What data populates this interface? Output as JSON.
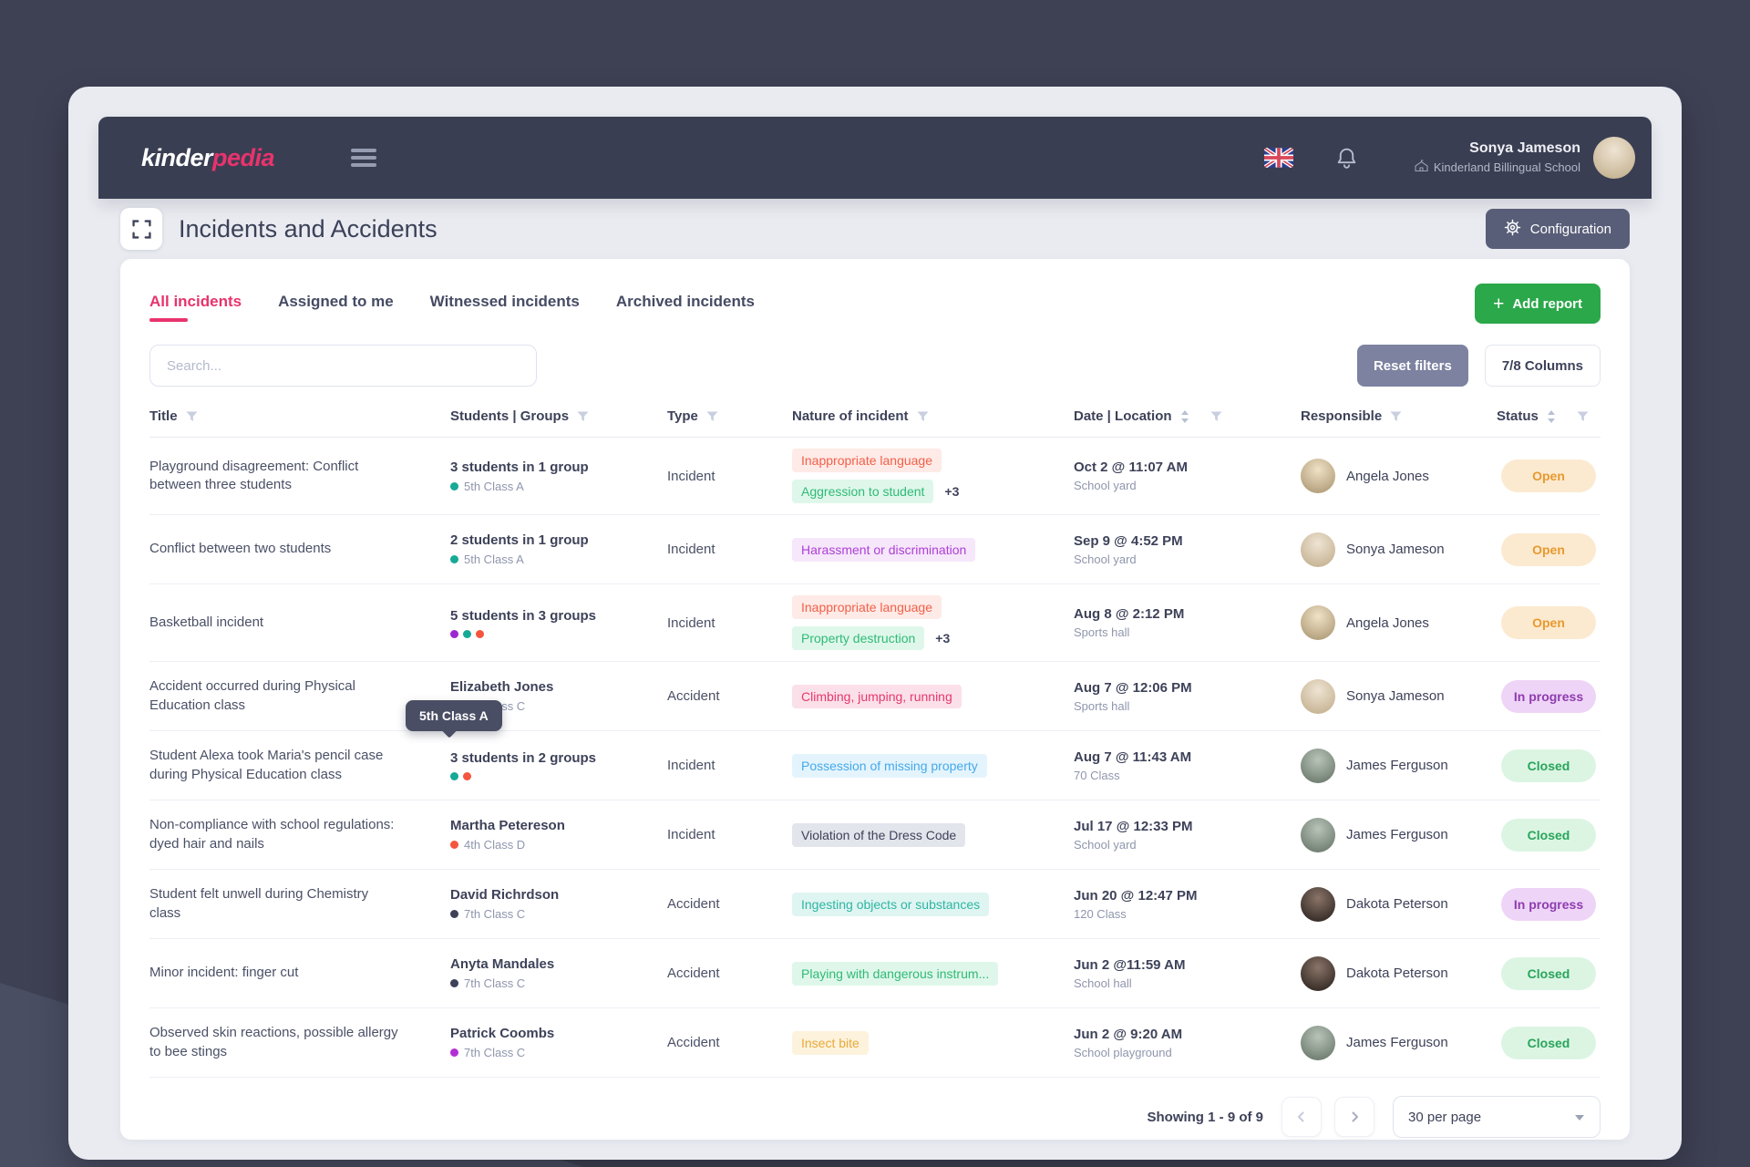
{
  "app": {
    "logo": {
      "bold": "kinder",
      "accent": "pedia"
    },
    "user": {
      "name": "Sonya Jameson",
      "school": "Kinderland Billingual School"
    }
  },
  "page": {
    "title": "Incidents and Accidents",
    "configuration_label": "Configuration"
  },
  "tabs": [
    {
      "label": "All incidents",
      "active": true
    },
    {
      "label": "Assigned to me",
      "active": false
    },
    {
      "label": "Witnessed incidents",
      "active": false
    },
    {
      "label": "Archived incidents",
      "active": false
    }
  ],
  "actions": {
    "add_report_label": "Add report",
    "reset_filters_label": "Reset filters",
    "columns_label": "7/8 Columns"
  },
  "search": {
    "placeholder": "Search..."
  },
  "table": {
    "columns": [
      {
        "label": "Title"
      },
      {
        "label": "Students | Groups"
      },
      {
        "label": "Type"
      },
      {
        "label": "Nature of incident"
      },
      {
        "label": "Date | Location"
      },
      {
        "label": "Responsible"
      },
      {
        "label": "Status"
      }
    ],
    "rows": [
      {
        "title": "Playground disagreement: Conflict between three students",
        "students": {
          "primary": "3 students in 1 group",
          "secondary": "5th Class A",
          "dots": [
            "#16a996"
          ]
        },
        "type": "Incident",
        "nature": [
          {
            "label": "Inappropriate language",
            "fg": "#f2604a",
            "bg": "#feeae6"
          },
          {
            "label": "Aggression to student",
            "fg": "#2fba77",
            "bg": "#dff7ea"
          }
        ],
        "nature_extra": "+3",
        "date": "Oct 2 @ 11:07 AM",
        "location": "School yard",
        "responsible": "Angela Jones",
        "status": {
          "label": "Open",
          "fg": "#e8992e",
          "bg": "#fbead0"
        }
      },
      {
        "title": "Conflict between two students",
        "students": {
          "primary": "2 students in 1 group",
          "secondary": "5th Class A",
          "dots": [
            "#16a996"
          ]
        },
        "type": "Incident",
        "nature": [
          {
            "label": "Harassment or discrimination",
            "fg": "#ae3ed6",
            "bg": "#f6e7fb"
          }
        ],
        "nature_extra": null,
        "date": "Sep 9 @ 4:52 PM",
        "location": "School yard",
        "responsible": "Sonya Jameson",
        "status": {
          "label": "Open",
          "fg": "#e8992e",
          "bg": "#fbead0"
        }
      },
      {
        "title": "Basketball incident",
        "students": {
          "primary": "5 students in 3 groups",
          "secondary": null,
          "dots": [
            "#9c27d0",
            "#16a996",
            "#f4553e"
          ]
        },
        "type": "Incident",
        "nature": [
          {
            "label": "Inappropriate language",
            "fg": "#f2604a",
            "bg": "#feeae6"
          },
          {
            "label": "Property destruction",
            "fg": "#2fba77",
            "bg": "#dff7ea"
          }
        ],
        "nature_extra": "+3",
        "date": "Aug 8 @ 2:12 PM",
        "location": "Sports hall",
        "responsible": "Angela Jones",
        "status": {
          "label": "Open",
          "fg": "#e8992e",
          "bg": "#fbead0"
        }
      },
      {
        "title": "Accident occurred during Physical Education class",
        "students": {
          "primary": "Elizabeth Jones",
          "secondary": "7th Class C",
          "dots": [
            "#9c27d0"
          ]
        },
        "type": "Accident",
        "nature": [
          {
            "label": "Climbing, jumping, running",
            "fg": "#e7386e",
            "bg": "#fbe0e9"
          }
        ],
        "nature_extra": null,
        "date": "Aug 7 @ 12:06 PM",
        "location": "Sports hall",
        "responsible": "Sonya Jameson",
        "status": {
          "label": "In progress",
          "fg": "#8e3cb0",
          "bg": "#eed4f6"
        }
      },
      {
        "title": "Student Alexa took Maria's pencil case during Physical Education class",
        "students": {
          "primary": "3 students in 2 groups",
          "secondary": null,
          "dots": [
            "#16a996",
            "#f4553e"
          ]
        },
        "type": "Incident",
        "nature": [
          {
            "label": "Possession of missing property",
            "fg": "#45a9ea",
            "bg": "#e4f4fd"
          }
        ],
        "nature_extra": null,
        "date": "Aug 7 @ 11:43 AM",
        "location": "70 Class",
        "responsible": "James Ferguson",
        "status": {
          "label": "Closed",
          "fg": "#28a55b",
          "bg": "#dcf5e3"
        }
      },
      {
        "title": "Non-compliance with school regulations: dyed hair and nails",
        "students": {
          "primary": "Martha Petereson",
          "secondary": "4th Class D",
          "dots": [
            "#f4553e"
          ]
        },
        "type": "Incident",
        "nature": [
          {
            "label": "Violation of the Dress Code",
            "fg": "#3d4259",
            "bg": "#e3e5ec"
          }
        ],
        "nature_extra": null,
        "date": "Jul 17 @ 12:33 PM",
        "location": "School yard",
        "responsible": "James Ferguson",
        "status": {
          "label": "Closed",
          "fg": "#28a55b",
          "bg": "#dcf5e3"
        }
      },
      {
        "title": "Student felt unwell during Chemistry class",
        "students": {
          "primary": "David Richrdson",
          "secondary": "7th Class C",
          "dots": [
            "#3d4259"
          ]
        },
        "type": "Accident",
        "nature": [
          {
            "label": "Ingesting objects or substances",
            "fg": "#2fb5a3",
            "bg": "#dff5f1"
          }
        ],
        "nature_extra": null,
        "date": "Jun 20 @ 12:47 PM",
        "location": "120 Class",
        "responsible": "Dakota Peterson",
        "status": {
          "label": "In progress",
          "fg": "#8e3cb0",
          "bg": "#eed4f6"
        }
      },
      {
        "title": "Minor incident: finger cut",
        "students": {
          "primary": "Anyta Mandales",
          "secondary": "7th Class C",
          "dots": [
            "#3d4259"
          ]
        },
        "type": "Accident",
        "nature": [
          {
            "label": "Playing with dangerous instrum...",
            "fg": "#2fba77",
            "bg": "#dff7ea"
          }
        ],
        "nature_extra": null,
        "date": "Jun 2 @11:59 AM",
        "location": "School hall",
        "responsible": "Dakota Peterson",
        "status": {
          "label": "Closed",
          "fg": "#28a55b",
          "bg": "#dcf5e3"
        }
      },
      {
        "title": "Observed skin reactions, possible allergy to bee stings",
        "students": {
          "primary": "Patrick Coombs",
          "secondary": "7th Class C",
          "dots": [
            "#b32fd4"
          ]
        },
        "type": "Accident",
        "nature": [
          {
            "label": "Insect bite",
            "fg": "#e9a83d",
            "bg": "#fdf3dc"
          }
        ],
        "nature_extra": null,
        "date": "Jun 2 @ 9:20 AM",
        "location": "School playground",
        "responsible": "James Ferguson",
        "status": {
          "label": "Closed",
          "fg": "#28a55b",
          "bg": "#dcf5e3"
        }
      }
    ]
  },
  "tooltip": {
    "text": "5th Class A"
  },
  "pagination": {
    "showing": "Showing 1 - 9 of 9",
    "per_page": "30 per page"
  },
  "people": {
    "Angela Jones": [
      "#f0e2c6",
      "#a5906b"
    ],
    "Sonya Jameson": [
      "#efe4d3",
      "#bda986"
    ],
    "James Ferguson": [
      "#b9c4b8",
      "#5f6e62"
    ],
    "Dakota Peterson": [
      "#8a7468",
      "#231c18"
    ]
  },
  "colors": {
    "accent_pink": "#e8336d",
    "green_button": "#2ba84a",
    "dark_background": "#3e4154",
    "appbar": "#3a3e52",
    "panel_background": "#e9ebf1"
  },
  "icons": {
    "hamburger-icon": "menu bars",
    "uk-flag-icon": "union jack",
    "bell-icon": "notifications",
    "school-icon": "school building",
    "expand-icon": "fullscreen corners",
    "gear-icon": "settings",
    "filter-icon": "funnel",
    "sort-icon": "up-down arrows",
    "plus-icon": "+",
    "chevron-left-icon": "‹",
    "chevron-right-icon": "›",
    "caret-down-icon": "▾"
  }
}
